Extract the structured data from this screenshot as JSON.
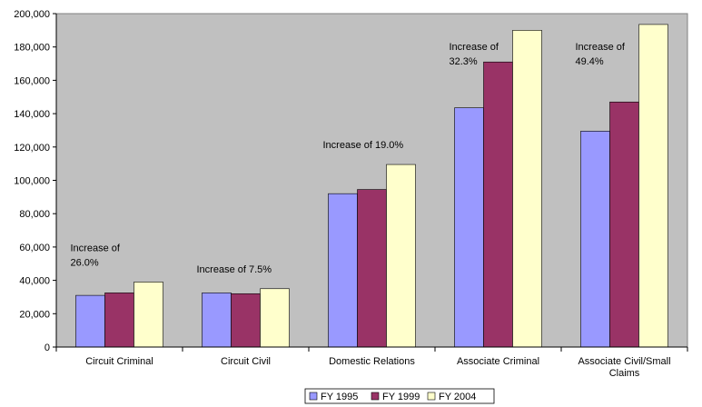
{
  "chart_data": {
    "type": "bar",
    "categories": [
      [
        "Circuit Criminal"
      ],
      [
        "Circuit Civil"
      ],
      [
        "Domestic Relations"
      ],
      [
        "Associate Criminal"
      ],
      [
        "Associate Civil/Small",
        "Claims"
      ]
    ],
    "series": [
      {
        "name": "FY 1995",
        "color": "#9999ff",
        "values": [
          31000,
          32500,
          92000,
          143500,
          129500
        ]
      },
      {
        "name": "FY 1999",
        "color": "#993366",
        "values": [
          32500,
          32000,
          94500,
          171000,
          147000
        ]
      },
      {
        "name": "FY 2004",
        "color": "#ffffcc",
        "values": [
          39000,
          35000,
          109500,
          190000,
          193500
        ]
      }
    ],
    "ylim": [
      0,
      200000
    ],
    "yticks": [
      "0",
      "20,000",
      "40,000",
      "60,000",
      "80,000",
      "100,000",
      "120,000",
      "140,000",
      "160,000",
      "180,000",
      "200,000"
    ],
    "grid": false,
    "plot_background": "#c0c0c0",
    "legend_position": "bottom",
    "annotations": [
      {
        "category": 0,
        "lines": [
          "Increase of",
          "26.0%"
        ]
      },
      {
        "category": 1,
        "lines": [
          "Increase of 7.5%"
        ]
      },
      {
        "category": 2,
        "lines": [
          "Increase of 19.0%"
        ]
      },
      {
        "category": 3,
        "lines": [
          "Increase of",
          "32.3%"
        ]
      },
      {
        "category": 4,
        "lines": [
          "Increase of",
          "49.4%"
        ]
      }
    ]
  }
}
